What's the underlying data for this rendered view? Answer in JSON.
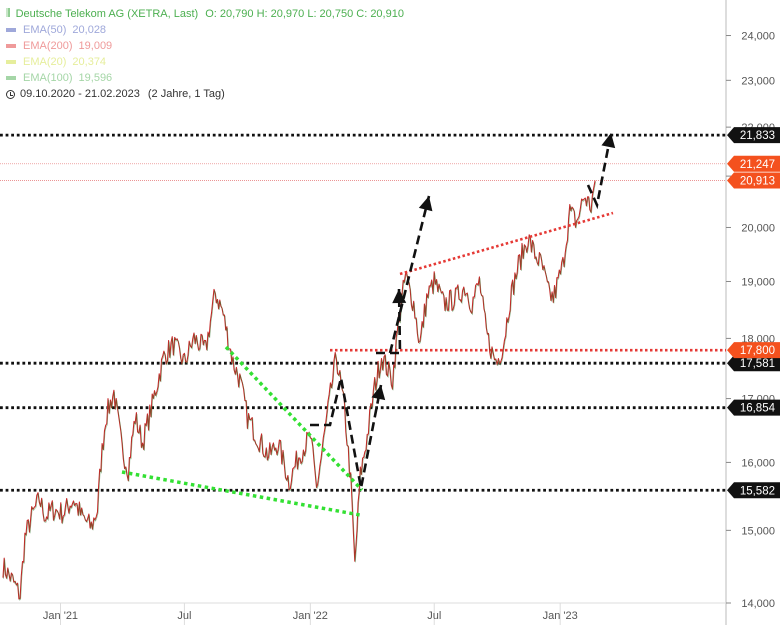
{
  "header": {
    "instrument": "Deutsche Telekom AG (XETRA, Last)",
    "ohlc": "O: 20,790  H: 20,970  L: 20,750  C: 20,910",
    "range": "09.10.2020 - 21.02.2023",
    "range_extra": "(2 Jahre, 1 Tag)"
  },
  "legend": [
    {
      "name": "EMA(50)",
      "value": "20,028",
      "color": "#9fa8da"
    },
    {
      "name": "EMA(200)",
      "value": "19,009",
      "color": "#ef9a9a"
    },
    {
      "name": "EMA(20)",
      "value": "20,374",
      "color": "#e6ee9c"
    },
    {
      "name": "EMA(100)",
      "value": "19,596",
      "color": "#a5d6a7"
    }
  ],
  "chart_data": {
    "type": "line",
    "y_scale": "log",
    "ylim": [
      14000,
      24800
    ],
    "x_range": [
      "2020-10-09",
      "2023-02-21"
    ],
    "y_ticks": [
      14000,
      15000,
      16000,
      17000,
      18000,
      19000,
      20000,
      21000,
      22000,
      23000,
      24000
    ],
    "y_tick_labels": [
      "14,000",
      "15,000",
      "16,000",
      "17,000",
      "18,000",
      "19,000",
      "20,000",
      "21,000",
      "22,000",
      "23,000",
      "24,000"
    ],
    "x_ticks": [
      "2021-01-01",
      "2021-07-01",
      "2022-01-01",
      "2022-07-01",
      "2023-01-01"
    ],
    "x_tick_labels": [
      "Jan '21",
      "Jul",
      "Jan '22",
      "Jul",
      "Jan '23"
    ],
    "series": [
      {
        "color": "#d32f2f",
        "points": [
          [
            "2020-10-09",
            14500
          ],
          [
            "2020-10-23",
            14300
          ],
          [
            "2020-11-03",
            14100
          ],
          [
            "2020-11-10",
            14900
          ],
          [
            "2020-11-20",
            15200
          ],
          [
            "2020-12-01",
            15450
          ],
          [
            "2020-12-10",
            15200
          ],
          [
            "2020-12-20",
            15300
          ],
          [
            "2021-01-05",
            15250
          ],
          [
            "2021-01-20",
            15450
          ],
          [
            "2021-02-01",
            15200
          ],
          [
            "2021-02-15",
            15050
          ],
          [
            "2021-02-24",
            15300
          ],
          [
            "2021-03-01",
            16000
          ],
          [
            "2021-03-08",
            16700
          ],
          [
            "2021-03-20",
            17100
          ],
          [
            "2021-04-01",
            16200
          ],
          [
            "2021-04-10",
            15900
          ],
          [
            "2021-04-20",
            16700
          ],
          [
            "2021-05-01",
            16300
          ],
          [
            "2021-05-15",
            16900
          ],
          [
            "2021-06-01",
            17700
          ],
          [
            "2021-06-15",
            17900
          ],
          [
            "2021-07-01",
            17600
          ],
          [
            "2021-07-15",
            18000
          ],
          [
            "2021-08-01",
            17800
          ],
          [
            "2021-08-15",
            18800
          ],
          [
            "2021-08-25",
            18500
          ],
          [
            "2021-09-10",
            17600
          ],
          [
            "2021-09-20",
            17300
          ],
          [
            "2021-10-01",
            16700
          ],
          [
            "2021-10-15",
            16400
          ],
          [
            "2021-11-01",
            16100
          ],
          [
            "2021-11-15",
            16300
          ],
          [
            "2021-12-01",
            15700
          ],
          [
            "2021-12-15",
            16100
          ],
          [
            "2022-01-01",
            16400
          ],
          [
            "2022-01-10",
            15600
          ],
          [
            "2022-01-20",
            16300
          ],
          [
            "2022-02-01",
            17200
          ],
          [
            "2022-02-08",
            17700
          ],
          [
            "2022-02-20",
            16800
          ],
          [
            "2022-03-01",
            15700
          ],
          [
            "2022-03-07",
            14500
          ],
          [
            "2022-03-15",
            15800
          ],
          [
            "2022-03-25",
            16400
          ],
          [
            "2022-04-05",
            17200
          ],
          [
            "2022-04-15",
            17700
          ],
          [
            "2022-05-01",
            17300
          ],
          [
            "2022-05-10",
            18300
          ],
          [
            "2022-05-20",
            19100
          ],
          [
            "2022-06-01",
            18600
          ],
          [
            "2022-06-10",
            17900
          ],
          [
            "2022-06-20",
            18700
          ],
          [
            "2022-07-01",
            19000
          ],
          [
            "2022-07-15",
            18600
          ],
          [
            "2022-08-01",
            18700
          ],
          [
            "2022-08-15",
            18900
          ],
          [
            "2022-08-25",
            18600
          ],
          [
            "2022-09-05",
            19000
          ],
          [
            "2022-09-15",
            18100
          ],
          [
            "2022-09-25",
            17700
          ],
          [
            "2022-10-01",
            17600
          ],
          [
            "2022-10-10",
            17900
          ],
          [
            "2022-10-20",
            18700
          ],
          [
            "2022-11-01",
            19300
          ],
          [
            "2022-11-15",
            19800
          ],
          [
            "2022-11-25",
            19500
          ],
          [
            "2022-12-05",
            19300
          ],
          [
            "2022-12-15",
            18800
          ],
          [
            "2022-12-22",
            18700
          ],
          [
            "2023-01-05",
            19300
          ],
          [
            "2023-01-15",
            20300
          ],
          [
            "2023-01-25",
            20100
          ],
          [
            "2023-02-05",
            20600
          ],
          [
            "2023-02-15",
            20400
          ],
          [
            "2023-02-21",
            20910
          ]
        ]
      }
    ],
    "horizontal_levels": [
      {
        "value": 21833,
        "label": "21,833",
        "style": "dotted-black"
      },
      {
        "value": 17581,
        "label": "17,581",
        "style": "dotted-black"
      },
      {
        "value": 16854,
        "label": "16,854",
        "style": "dotted-black"
      },
      {
        "value": 15582,
        "label": "15,582",
        "style": "dotted-black"
      },
      {
        "value": 17800,
        "label": "17,800",
        "style": "dotted-red"
      }
    ],
    "price_labels": [
      {
        "value": 21247,
        "label": "21,247"
      },
      {
        "value": 20913,
        "label": "20,913"
      }
    ]
  }
}
